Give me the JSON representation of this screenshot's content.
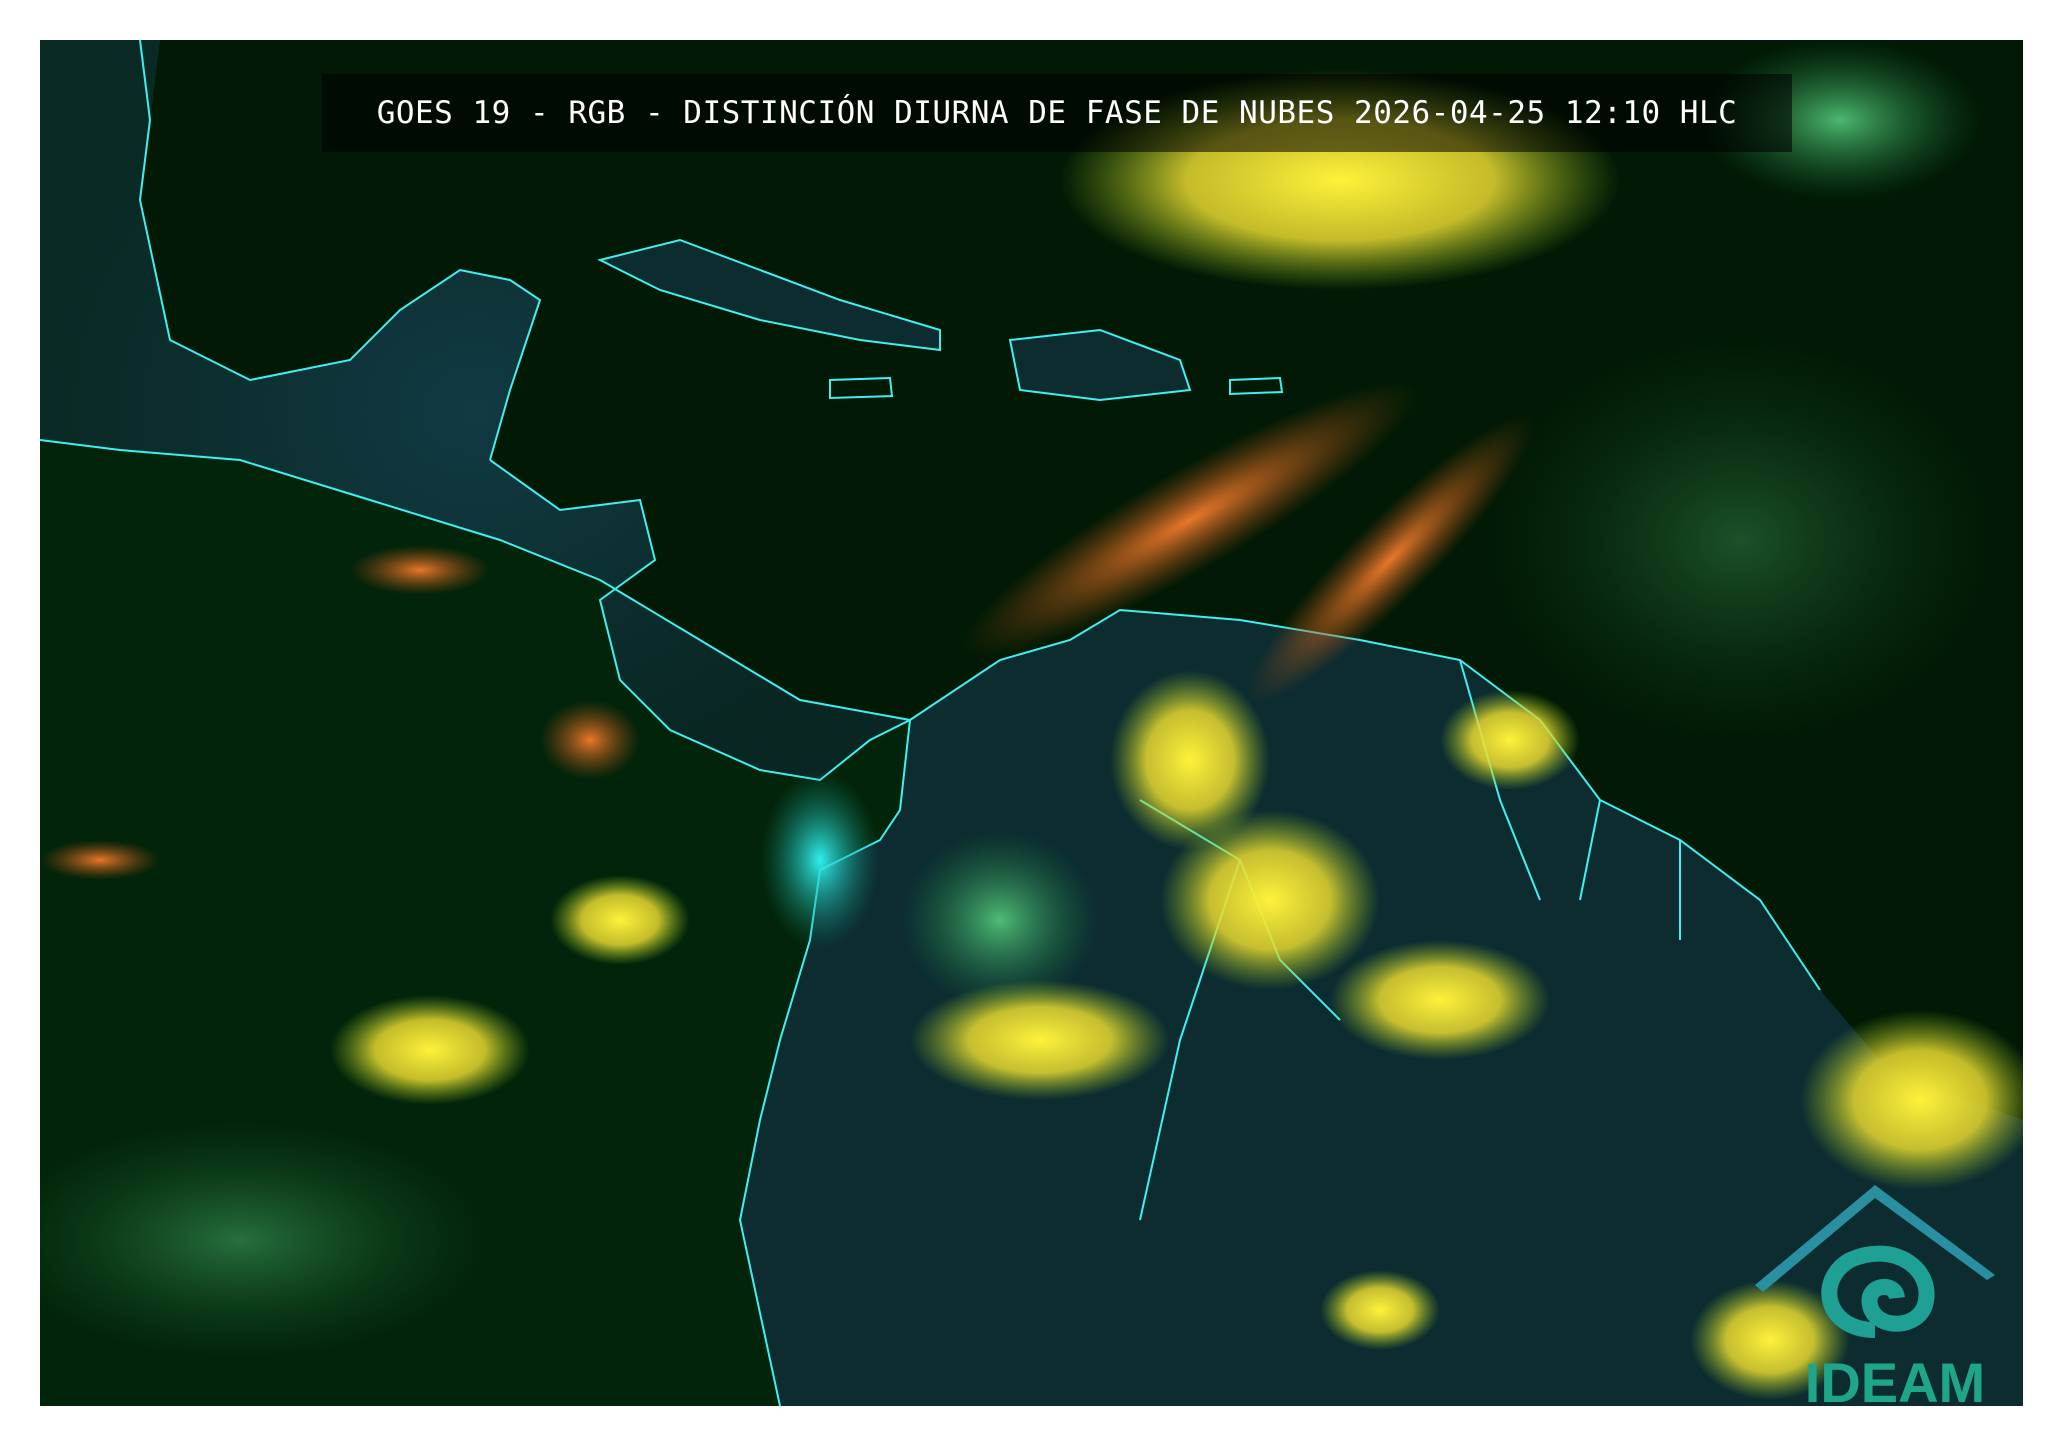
{
  "title": "GOES 19 - RGB - DISTINCIÓN DIURNA DE FASE DE NUBES 2026-04-25 12:10 HLC",
  "logo": {
    "text": "IDEAM",
    "color": "#1fa68a"
  },
  "colors": {
    "background": "#021a05",
    "coastline": "#3ff0f0",
    "cloud_yellow": "#fff23a",
    "cloud_orange": "#e0701c",
    "land": "#0c2c3c"
  }
}
